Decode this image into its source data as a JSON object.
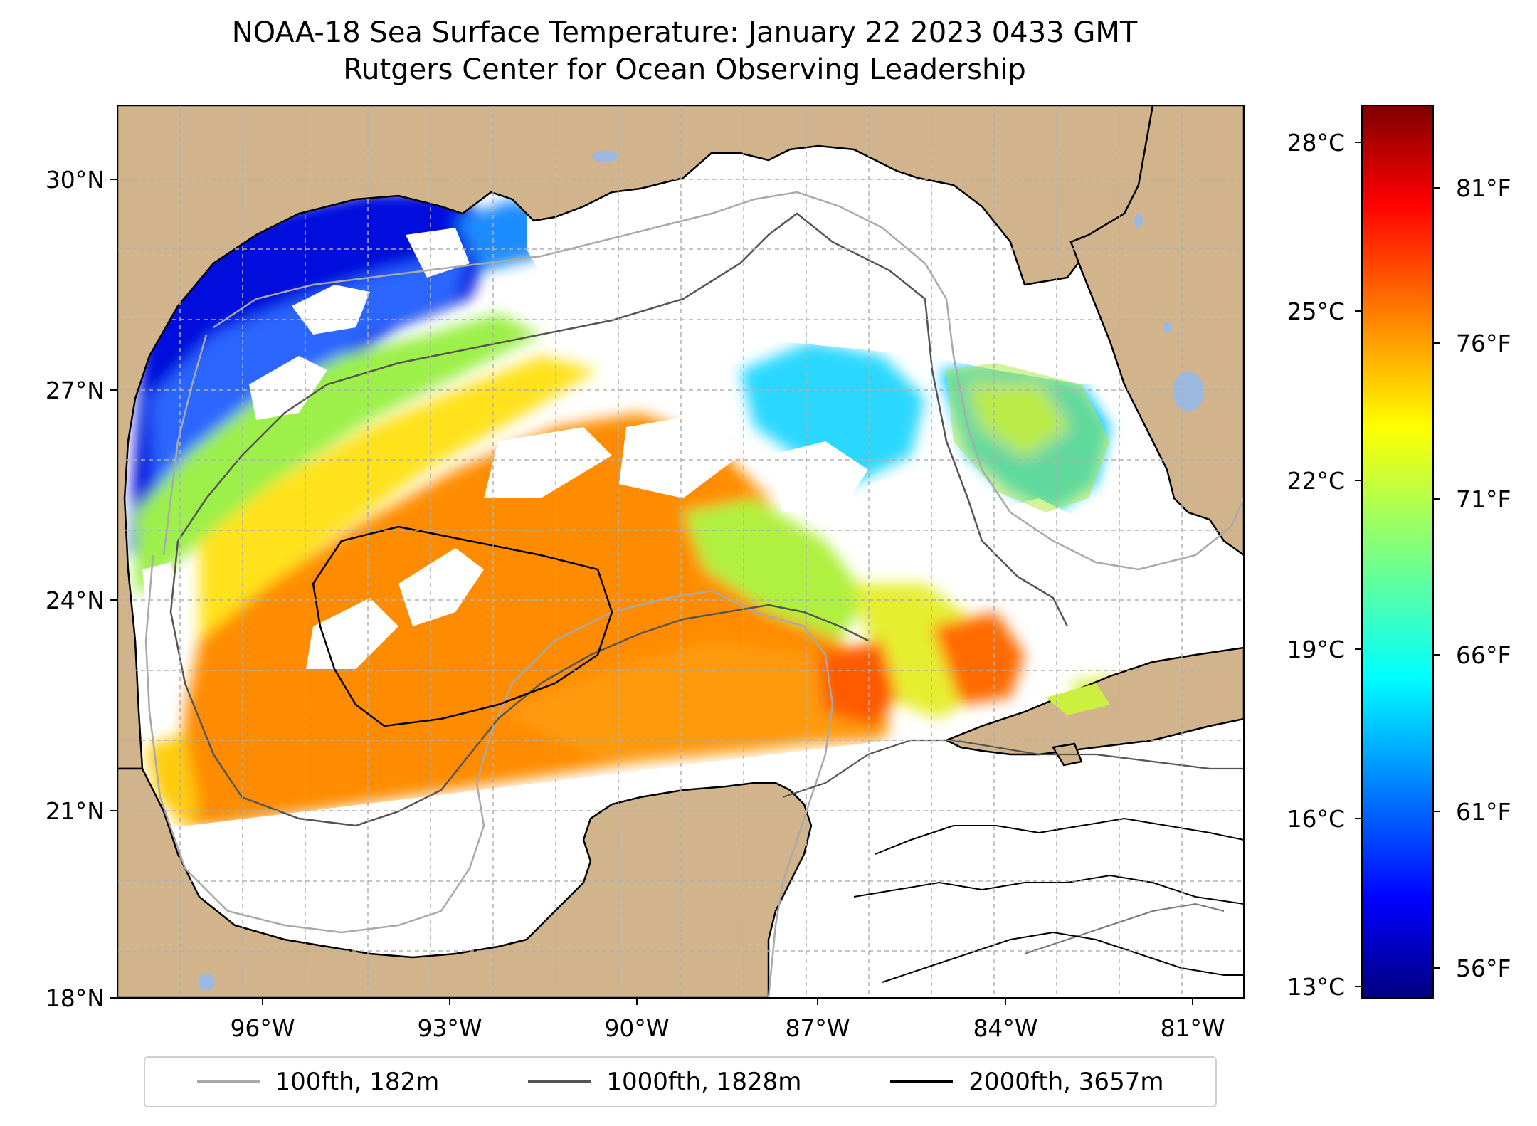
{
  "title": "NOAA-18 Sea Surface Temperature: January 22 2023 0433 GMT",
  "subtitle": "Rutgers Center for Ocean Observing Leadership",
  "lon_labels": [
    "96°W",
    "93°W",
    "90°W",
    "87°W",
    "84°W",
    "81°W"
  ],
  "lat_labels": [
    "30°N",
    "27°N",
    "24°N",
    "21°N",
    "18°N"
  ],
  "colorbar": {
    "celsius_labels": [
      "28°C",
      "25°C",
      "22°C",
      "19°C",
      "16°C",
      "13°C"
    ],
    "fahrenheit_labels": [
      "81°F",
      "76°F",
      "71°F",
      "66°F",
      "61°F",
      "56°F"
    ],
    "colormap": "jet"
  },
  "legend": [
    {
      "label": "100fth, 182m",
      "color": "#a9a9a9"
    },
    {
      "label": "1000fth, 1828m",
      "color": "#555555"
    },
    {
      "label": "2000fth, 3657m",
      "color": "#000000"
    }
  ],
  "colors": {
    "land": "#d2b48c",
    "water": "#ffffff",
    "lakes": "#9db8e0"
  }
}
